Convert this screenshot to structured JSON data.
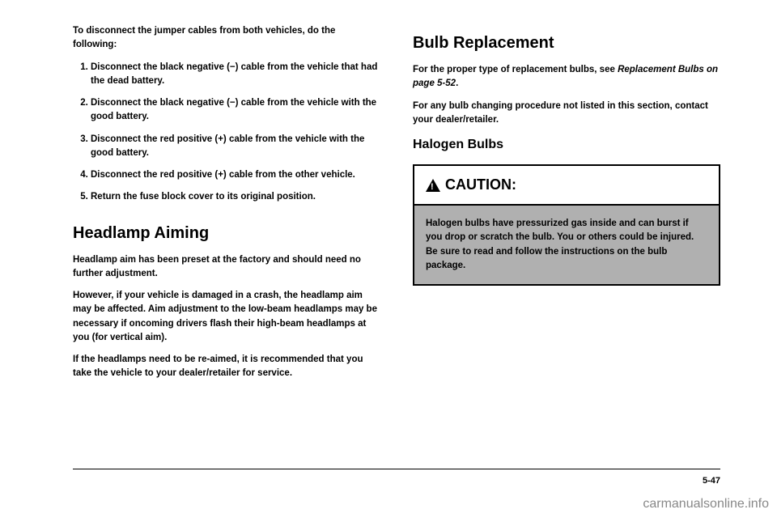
{
  "left": {
    "intro": "To disconnect the jumper cables from both vehicles, do the following:",
    "steps": [
      "Disconnect the black negative (−) cable from the vehicle that had the dead battery.",
      "Disconnect the black negative (−) cable from the vehicle with the good battery.",
      "Disconnect the red positive (+) cable from the vehicle with the good battery.",
      "Disconnect the red positive (+) cable from the other vehicle.",
      "Return the fuse block cover to its original position."
    ],
    "heading": "Headlamp Aiming",
    "p1": "Headlamp aim has been preset at the factory and should need no further adjustment.",
    "p2": "However, if your vehicle is damaged in a crash, the headlamp aim may be affected. Aim adjustment to the low-beam headlamps may be necessary if oncoming drivers flash their high-beam headlamps at you (for vertical aim).",
    "p3": "If the headlamps need to be re-aimed, it is recommended that you take the vehicle to your dealer/retailer for service."
  },
  "right": {
    "heading": "Bulb Replacement",
    "p1a": "For the proper type of replacement bulbs, see ",
    "p1b": "Replacement Bulbs on page 5-52",
    "p1c": ".",
    "p2": "For any bulb changing procedure not listed in this section, contact your dealer/retailer.",
    "subheading": "Halogen Bulbs",
    "caution_label": "CAUTION:",
    "caution_body": "Halogen bulbs have pressurized gas inside and can burst if you drop or scratch the bulb. You or others could be injured. Be sure to read and follow the instructions on the bulb package."
  },
  "page_number": "5-47",
  "watermark": "carmanualsonline.info"
}
